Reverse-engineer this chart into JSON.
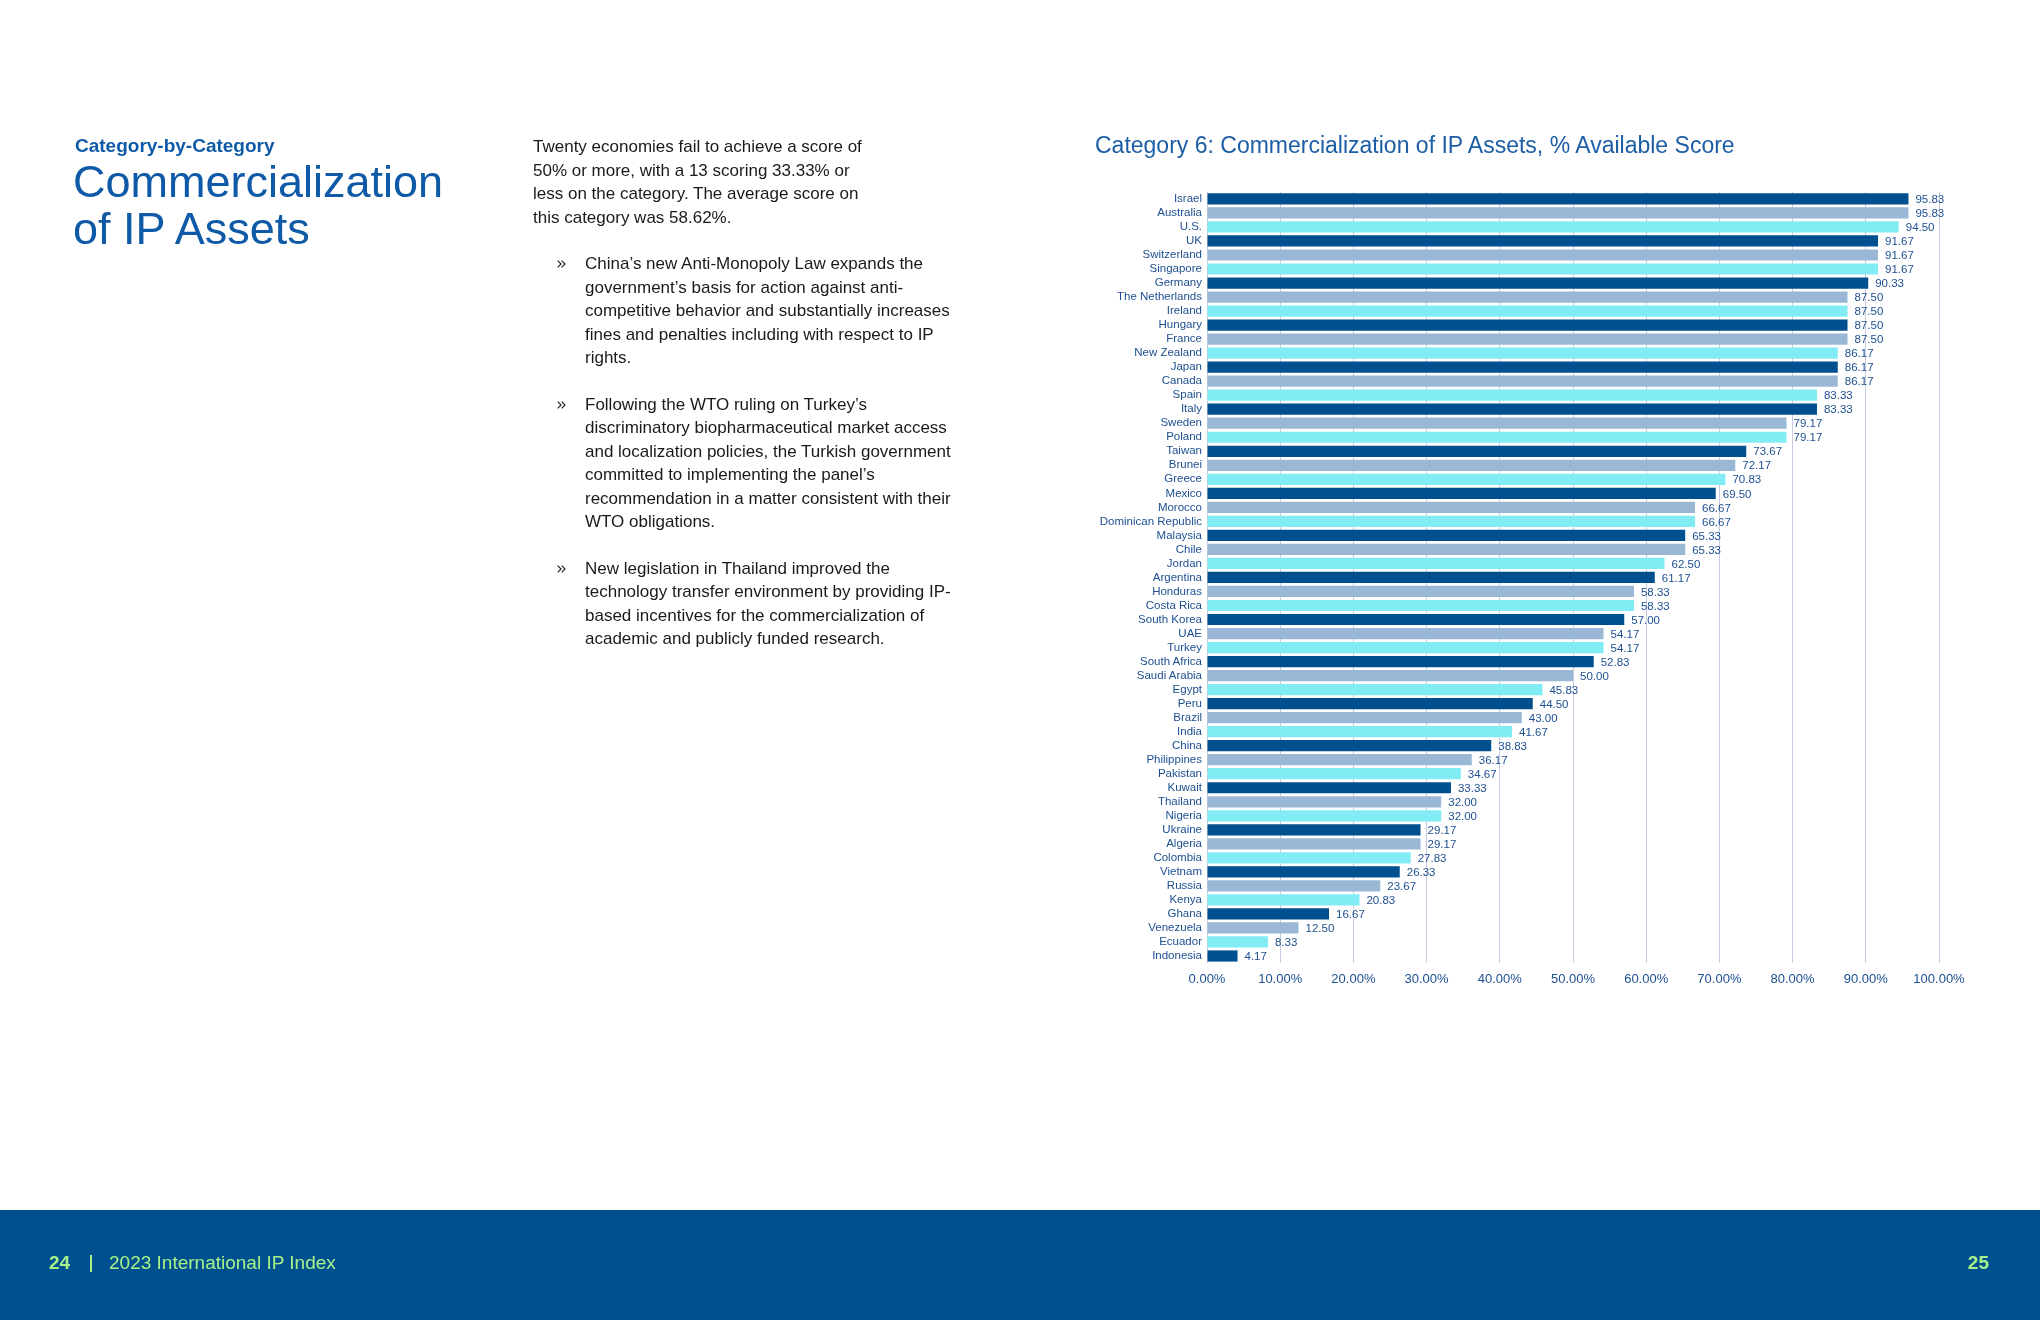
{
  "chart_data": [
    {
      "type": "other",
      "subtitle": "Category-by-Category",
      "title": "Commercialization of IP Assets",
      "annotations": [
        "Twenty economies fail to achieve a score of 50% or more, with a 13 scoring 33.33% or less on the category. The average score on this category was 58.62%.",
        "China’s new Anti-Monopoly Law expands the government’s basis for action against anti-competitive behavior and substantially increases fines and penalties including with respect to IP rights.",
        "Following the WTO ruling on Turkey’s discriminatory biopharmaceutical market access and localization policies, the Turkish government committed to implementing the panel’s recommendation in a matter consistent with their WTO obligations.",
        "New legislation in Thailand improved the technology transfer environment by providing IP-based incentives for the commercialization of academic and publicly funded research."
      ]
    },
    {
      "type": "bar",
      "orientation": "horizontal",
      "title": "Category 6: Commercialization of IP Assets, % Available Score",
      "categories": [
        "Israel",
        "Australia",
        "U.S.",
        "UK",
        "Switzerland",
        "Singapore",
        "Germany",
        "The Netherlands",
        "Ireland",
        "Hungary",
        "France",
        "New Zealand",
        "Japan",
        "Canada",
        "Spain",
        "Italy",
        "Sweden",
        "Poland",
        "Taiwan",
        "Brunei",
        "Greece",
        "Mexico",
        "Morocco",
        "Dominican Republic",
        "Malaysia",
        "Chile",
        "Jordan",
        "Argentina",
        "Honduras",
        "Costa Rica",
        "South Korea",
        "UAE",
        "Turkey",
        "South Africa",
        "Saudi Arabia",
        "Egypt",
        "Peru",
        "Brazil",
        "India",
        "China",
        "Philippines",
        "Pakistan",
        "Kuwait",
        "Thailand",
        "Nigeria",
        "Ukraine",
        "Algeria",
        "Colombia",
        "Vietnam",
        "Russia",
        "Kenya",
        "Ghana",
        "Venezuela",
        "Ecuador",
        "Indonesia"
      ],
      "values": [
        95.83,
        95.83,
        94.5,
        91.67,
        91.67,
        91.67,
        90.33,
        87.5,
        87.5,
        87.5,
        87.5,
        86.17,
        86.17,
        86.17,
        83.33,
        83.33,
        79.17,
        79.17,
        73.67,
        72.17,
        70.83,
        69.5,
        66.67,
        66.67,
        65.33,
        65.33,
        62.5,
        61.17,
        58.33,
        58.33,
        57.0,
        54.17,
        54.17,
        52.83,
        50.0,
        45.83,
        44.5,
        43.0,
        41.67,
        38.83,
        36.17,
        34.67,
        33.33,
        32.0,
        32.0,
        29.17,
        29.17,
        27.83,
        26.33,
        23.67,
        20.83,
        16.67,
        12.5,
        8.33,
        4.17
      ],
      "value_labels": [
        "95.83",
        "95.83",
        "94.50",
        "91.67",
        "91.67",
        "91.67",
        "90.33",
        "87.50",
        "87.50",
        "87.50",
        "87.50",
        "86.17",
        "86.17",
        "86.17",
        "83.33",
        "83.33",
        "79.17",
        "79.17",
        "73.67",
        "72.17",
        "70.83",
        "69.50",
        "66.67",
        "66.67",
        "65.33",
        "65.33",
        "62.50",
        "61.17",
        "58.33",
        "58.33",
        "57.00",
        "54.17",
        "54.17",
        "52.83",
        "50.00",
        "45.83",
        "44.50",
        "43.00",
        "41.67",
        "38.83",
        "36.17",
        "34.67",
        "33.33",
        "32.00",
        "32.00",
        "29.17",
        "29.17",
        "27.83",
        "26.33",
        "23.67",
        "20.83",
        "16.67",
        "12.50",
        "8.33",
        "4.17"
      ],
      "colors": [
        "#00508f",
        "#9ab8d6",
        "#82ecf4",
        "#00508f",
        "#9ab8d6",
        "#82ecf4",
        "#00508f",
        "#9ab8d6",
        "#82ecf4",
        "#00508f",
        "#9ab8d6",
        "#82ecf4",
        "#00508f",
        "#9ab8d6",
        "#82ecf4",
        "#00508f",
        "#9ab8d6",
        "#82ecf4",
        "#00508f",
        "#9ab8d6",
        "#82ecf4",
        "#00508f",
        "#9ab8d6",
        "#82ecf4",
        "#00508f",
        "#9ab8d6",
        "#82ecf4",
        "#00508f",
        "#9ab8d6",
        "#82ecf4",
        "#00508f",
        "#9ab8d6",
        "#82ecf4",
        "#00508f",
        "#9ab8d6",
        "#82ecf4",
        "#00508f",
        "#9ab8d6",
        "#82ecf4",
        "#00508f",
        "#9ab8d6",
        "#82ecf4",
        "#00508f",
        "#9ab8d6",
        "#82ecf4",
        "#00508f",
        "#9ab8d6",
        "#82ecf4",
        "#00508f",
        "#9ab8d6",
        "#82ecf4",
        "#00508f",
        "#9ab8d6",
        "#82ecf4",
        "#00508f"
      ],
      "xlim": [
        0,
        100
      ],
      "xticks": [
        {
          "value": 0,
          "label": "0.00%"
        },
        {
          "value": 10,
          "label": "10.00%"
        },
        {
          "value": 20,
          "label": "20.00%"
        },
        {
          "value": 30,
          "label": "30.00%"
        },
        {
          "value": 40,
          "label": "40.00%"
        },
        {
          "value": 50,
          "label": "50.00%"
        },
        {
          "value": 60,
          "label": "60.00%"
        },
        {
          "value": 70,
          "label": "70.00%"
        },
        {
          "value": 80,
          "label": "80.00%"
        },
        {
          "value": 90,
          "label": "90.00%"
        },
        {
          "value": 100,
          "label": "100.00%"
        }
      ],
      "grid": "x",
      "legend": false
    },
    {
      "type": "other",
      "annotations": [
        "24",
        "2023 International IP Index",
        "25"
      ]
    }
  ]
}
